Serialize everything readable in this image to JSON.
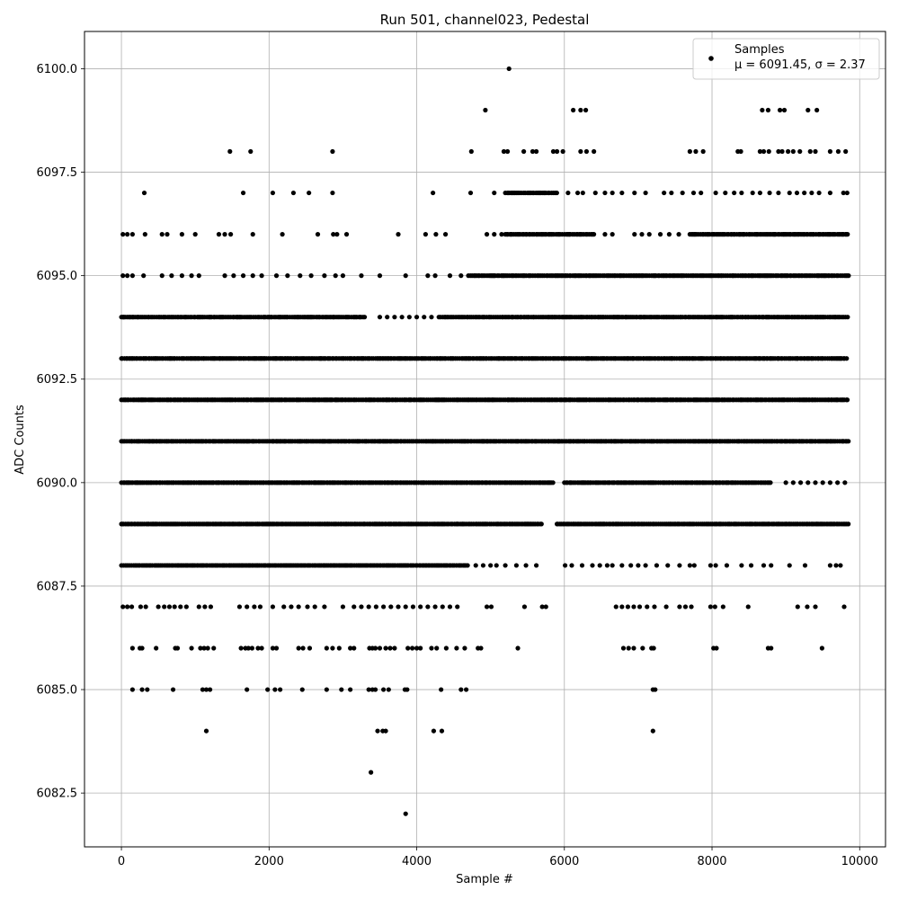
{
  "chart_data": {
    "type": "scatter",
    "title": "Run 501, channel023, Pedestal",
    "xlabel": "Sample #",
    "ylabel": "ADC Counts",
    "xlim": [
      -500,
      10350
    ],
    "ylim": [
      6081.2,
      6100.9
    ],
    "xticks": [
      0,
      2000,
      4000,
      6000,
      8000,
      10000
    ],
    "yticks": [
      6082.5,
      6085.0,
      6087.5,
      6090.0,
      6092.5,
      6095.0,
      6097.5,
      6100.0
    ],
    "xtick_labels": [
      "0",
      "2000",
      "4000",
      "6000",
      "8000",
      "10000"
    ],
    "ytick_labels": [
      "6082.5",
      "6085.0",
      "6087.5",
      "6090.0",
      "6092.5",
      "6095.0",
      "6097.5",
      "6100.0"
    ],
    "grid": true,
    "marker_color": "#000000",
    "legend": {
      "position": "top-right",
      "series_name": "Samples",
      "stats_text": "μ = 6091.45, σ = 2.37"
    },
    "n_samples": 9856,
    "levels": [
      6082,
      6083,
      6084,
      6085,
      6086,
      6087,
      6088,
      6089,
      6090,
      6091,
      6092,
      6093,
      6094,
      6095,
      6096,
      6097,
      6098,
      6099,
      6100
    ],
    "dense_levels": [
      {
        "y": 6088,
        "x_range": [
          0,
          4700
        ]
      },
      {
        "y": 6089,
        "x_range": [
          0,
          5700
        ]
      },
      {
        "y": 6089,
        "x_range": [
          5900,
          9850
        ]
      },
      {
        "y": 6090,
        "x_range": [
          0,
          5850
        ]
      },
      {
        "y": 6090,
        "x_range": [
          6000,
          8800
        ]
      },
      {
        "y": 6091,
        "x_range": [
          0,
          9850
        ]
      },
      {
        "y": 6092,
        "x_range": [
          0,
          9850
        ]
      },
      {
        "y": 6093,
        "x_range": [
          0,
          9850
        ]
      },
      {
        "y": 6094,
        "x_range": [
          0,
          3300
        ]
      },
      {
        "y": 6094,
        "x_range": [
          4300,
          9850
        ]
      },
      {
        "y": 6095,
        "x_range": [
          4700,
          9850
        ]
      },
      {
        "y": 6096,
        "x_range": [
          5200,
          6400
        ]
      },
      {
        "y": 6096,
        "x_range": [
          7700,
          9850
        ]
      },
      {
        "y": 6097,
        "x_range": [
          5200,
          5900
        ]
      }
    ],
    "points": [
      [
        3850,
        6082
      ],
      [
        3380,
        6083
      ],
      [
        1150,
        6084
      ],
      [
        3470,
        6084
      ],
      [
        3540,
        6084
      ],
      [
        3580,
        6084
      ],
      [
        4230,
        6084
      ],
      [
        4340,
        6084
      ],
      [
        7200,
        6084
      ],
      [
        150,
        6085
      ],
      [
        280,
        6085
      ],
      [
        350,
        6085
      ],
      [
        700,
        6085
      ],
      [
        1100,
        6085
      ],
      [
        1150,
        6085
      ],
      [
        1200,
        6085
      ],
      [
        1700,
        6085
      ],
      [
        1980,
        6085
      ],
      [
        2080,
        6085
      ],
      [
        2150,
        6085
      ],
      [
        2450,
        6085
      ],
      [
        2780,
        6085
      ],
      [
        2980,
        6085
      ],
      [
        3100,
        6085
      ],
      [
        3350,
        6085
      ],
      [
        3400,
        6085
      ],
      [
        3440,
        6085
      ],
      [
        3550,
        6085
      ],
      [
        3620,
        6085
      ],
      [
        3840,
        6085
      ],
      [
        3870,
        6085
      ],
      [
        4330,
        6085
      ],
      [
        4600,
        6085
      ],
      [
        4670,
        6085
      ],
      [
        7200,
        6085
      ],
      [
        7230,
        6085
      ],
      [
        150,
        6086
      ],
      [
        250,
        6086
      ],
      [
        280,
        6086
      ],
      [
        470,
        6086
      ],
      [
        730,
        6086
      ],
      [
        760,
        6086
      ],
      [
        950,
        6086
      ],
      [
        1070,
        6086
      ],
      [
        1120,
        6086
      ],
      [
        1170,
        6086
      ],
      [
        1250,
        6086
      ],
      [
        1620,
        6086
      ],
      [
        1680,
        6086
      ],
      [
        1720,
        6086
      ],
      [
        1770,
        6086
      ],
      [
        1850,
        6086
      ],
      [
        1900,
        6086
      ],
      [
        2050,
        6086
      ],
      [
        2100,
        6086
      ],
      [
        2400,
        6086
      ],
      [
        2460,
        6086
      ],
      [
        2550,
        6086
      ],
      [
        2780,
        6086
      ],
      [
        2860,
        6086
      ],
      [
        2950,
        6086
      ],
      [
        3100,
        6086
      ],
      [
        3150,
        6086
      ],
      [
        3360,
        6086
      ],
      [
        3400,
        6086
      ],
      [
        3440,
        6086
      ],
      [
        3500,
        6086
      ],
      [
        3580,
        6086
      ],
      [
        3640,
        6086
      ],
      [
        3700,
        6086
      ],
      [
        3880,
        6086
      ],
      [
        3940,
        6086
      ],
      [
        4000,
        6086
      ],
      [
        4050,
        6086
      ],
      [
        4200,
        6086
      ],
      [
        4270,
        6086
      ],
      [
        4400,
        6086
      ],
      [
        4540,
        6086
      ],
      [
        4650,
        6086
      ],
      [
        4830,
        6086
      ],
      [
        4870,
        6086
      ],
      [
        5370,
        6086
      ],
      [
        6800,
        6086
      ],
      [
        6870,
        6086
      ],
      [
        6940,
        6086
      ],
      [
        7060,
        6086
      ],
      [
        7180,
        6086
      ],
      [
        7210,
        6086
      ],
      [
        8020,
        6086
      ],
      [
        8060,
        6086
      ],
      [
        8760,
        6086
      ],
      [
        8800,
        6086
      ],
      [
        9490,
        6086
      ],
      [
        20,
        6087
      ],
      [
        80,
        6087
      ],
      [
        140,
        6087
      ],
      [
        260,
        6087
      ],
      [
        330,
        6087
      ],
      [
        500,
        6087
      ],
      [
        580,
        6087
      ],
      [
        650,
        6087
      ],
      [
        720,
        6087
      ],
      [
        800,
        6087
      ],
      [
        880,
        6087
      ],
      [
        1050,
        6087
      ],
      [
        1130,
        6087
      ],
      [
        1210,
        6087
      ],
      [
        1600,
        6087
      ],
      [
        1700,
        6087
      ],
      [
        1800,
        6087
      ],
      [
        1880,
        6087
      ],
      [
        2050,
        6087
      ],
      [
        2200,
        6087
      ],
      [
        2300,
        6087
      ],
      [
        2400,
        6087
      ],
      [
        2520,
        6087
      ],
      [
        2620,
        6087
      ],
      [
        2750,
        6087
      ],
      [
        3000,
        6087
      ],
      [
        3150,
        6087
      ],
      [
        3250,
        6087
      ],
      [
        3350,
        6087
      ],
      [
        3450,
        6087
      ],
      [
        3550,
        6087
      ],
      [
        3650,
        6087
      ],
      [
        3750,
        6087
      ],
      [
        3850,
        6087
      ],
      [
        3950,
        6087
      ],
      [
        4050,
        6087
      ],
      [
        4150,
        6087
      ],
      [
        4250,
        6087
      ],
      [
        4350,
        6087
      ],
      [
        4450,
        6087
      ],
      [
        4550,
        6087
      ],
      [
        4950,
        6087
      ],
      [
        5010,
        6087
      ],
      [
        5460,
        6087
      ],
      [
        5700,
        6087
      ],
      [
        5750,
        6087
      ],
      [
        6700,
        6087
      ],
      [
        6780,
        6087
      ],
      [
        6860,
        6087
      ],
      [
        6940,
        6087
      ],
      [
        7020,
        6087
      ],
      [
        7120,
        6087
      ],
      [
        7220,
        6087
      ],
      [
        7380,
        6087
      ],
      [
        7560,
        6087
      ],
      [
        7640,
        6087
      ],
      [
        7720,
        6087
      ],
      [
        7980,
        6087
      ],
      [
        8040,
        6087
      ],
      [
        8150,
        6087
      ],
      [
        8490,
        6087
      ],
      [
        9160,
        6087
      ],
      [
        9290,
        6087
      ],
      [
        9400,
        6087
      ],
      [
        9790,
        6087
      ],
      [
        4800,
        6088
      ],
      [
        4900,
        6088
      ],
      [
        5000,
        6088
      ],
      [
        5080,
        6088
      ],
      [
        5200,
        6088
      ],
      [
        5350,
        6088
      ],
      [
        5480,
        6088
      ],
      [
        5620,
        6088
      ],
      [
        6010,
        6088
      ],
      [
        6100,
        6088
      ],
      [
        6240,
        6088
      ],
      [
        6380,
        6088
      ],
      [
        6480,
        6088
      ],
      [
        6580,
        6088
      ],
      [
        6650,
        6088
      ],
      [
        6780,
        6088
      ],
      [
        6900,
        6088
      ],
      [
        7000,
        6088
      ],
      [
        7100,
        6088
      ],
      [
        7250,
        6088
      ],
      [
        7400,
        6088
      ],
      [
        7560,
        6088
      ],
      [
        7700,
        6088
      ],
      [
        7760,
        6088
      ],
      [
        7980,
        6088
      ],
      [
        8050,
        6088
      ],
      [
        8200,
        6088
      ],
      [
        8400,
        6088
      ],
      [
        8530,
        6088
      ],
      [
        8700,
        6088
      ],
      [
        8800,
        6088
      ],
      [
        9050,
        6088
      ],
      [
        9260,
        6088
      ],
      [
        9600,
        6088
      ],
      [
        9680,
        6088
      ],
      [
        9740,
        6088
      ],
      [
        9000,
        6090
      ],
      [
        9100,
        6090
      ],
      [
        9200,
        6090
      ],
      [
        9300,
        6090
      ],
      [
        9400,
        6090
      ],
      [
        9500,
        6090
      ],
      [
        9600,
        6090
      ],
      [
        9700,
        6090
      ],
      [
        9800,
        6090
      ],
      [
        30,
        6094
      ],
      [
        120,
        6094
      ],
      [
        220,
        6094
      ],
      [
        3500,
        6094
      ],
      [
        3600,
        6094
      ],
      [
        3700,
        6094
      ],
      [
        3800,
        6094
      ],
      [
        3900,
        6094
      ],
      [
        4000,
        6094
      ],
      [
        4100,
        6094
      ],
      [
        4200,
        6094
      ],
      [
        20,
        6095
      ],
      [
        80,
        6095
      ],
      [
        150,
        6095
      ],
      [
        300,
        6095
      ],
      [
        550,
        6095
      ],
      [
        680,
        6095
      ],
      [
        820,
        6095
      ],
      [
        950,
        6095
      ],
      [
        1050,
        6095
      ],
      [
        1400,
        6095
      ],
      [
        1520,
        6095
      ],
      [
        1650,
        6095
      ],
      [
        1780,
        6095
      ],
      [
        1900,
        6095
      ],
      [
        2100,
        6095
      ],
      [
        2250,
        6095
      ],
      [
        2420,
        6095
      ],
      [
        2570,
        6095
      ],
      [
        2750,
        6095
      ],
      [
        2900,
        6095
      ],
      [
        3000,
        6095
      ],
      [
        3250,
        6095
      ],
      [
        3500,
        6095
      ],
      [
        3850,
        6095
      ],
      [
        4150,
        6095
      ],
      [
        4250,
        6095
      ],
      [
        4450,
        6095
      ],
      [
        4600,
        6095
      ],
      [
        20,
        6096
      ],
      [
        80,
        6096
      ],
      [
        150,
        6096
      ],
      [
        320,
        6096
      ],
      [
        550,
        6096
      ],
      [
        620,
        6096
      ],
      [
        820,
        6096
      ],
      [
        1000,
        6096
      ],
      [
        1320,
        6096
      ],
      [
        1400,
        6096
      ],
      [
        1480,
        6096
      ],
      [
        1780,
        6096
      ],
      [
        2180,
        6096
      ],
      [
        2660,
        6096
      ],
      [
        2870,
        6096
      ],
      [
        2920,
        6096
      ],
      [
        3050,
        6096
      ],
      [
        3750,
        6096
      ],
      [
        4120,
        6096
      ],
      [
        4260,
        6096
      ],
      [
        4390,
        6096
      ],
      [
        4950,
        6096
      ],
      [
        5050,
        6096
      ],
      [
        5150,
        6096
      ],
      [
        6550,
        6096
      ],
      [
        6650,
        6096
      ],
      [
        6950,
        6096
      ],
      [
        7050,
        6096
      ],
      [
        7150,
        6096
      ],
      [
        7300,
        6096
      ],
      [
        7420,
        6096
      ],
      [
        7550,
        6096
      ],
      [
        310,
        6097
      ],
      [
        1650,
        6097
      ],
      [
        2050,
        6097
      ],
      [
        2330,
        6097
      ],
      [
        2540,
        6097
      ],
      [
        2860,
        6097
      ],
      [
        4220,
        6097
      ],
      [
        4730,
        6097
      ],
      [
        5050,
        6097
      ],
      [
        6050,
        6097
      ],
      [
        6180,
        6097
      ],
      [
        6250,
        6097
      ],
      [
        6420,
        6097
      ],
      [
        6550,
        6097
      ],
      [
        6650,
        6097
      ],
      [
        6780,
        6097
      ],
      [
        6950,
        6097
      ],
      [
        7100,
        6097
      ],
      [
        7350,
        6097
      ],
      [
        7450,
        6097
      ],
      [
        7600,
        6097
      ],
      [
        7750,
        6097
      ],
      [
        7850,
        6097
      ],
      [
        8050,
        6097
      ],
      [
        8180,
        6097
      ],
      [
        8300,
        6097
      ],
      [
        8400,
        6097
      ],
      [
        8550,
        6097
      ],
      [
        8650,
        6097
      ],
      [
        8780,
        6097
      ],
      [
        8900,
        6097
      ],
      [
        9050,
        6097
      ],
      [
        9150,
        6097
      ],
      [
        9250,
        6097
      ],
      [
        9350,
        6097
      ],
      [
        9450,
        6097
      ],
      [
        9600,
        6097
      ],
      [
        9780,
        6097
      ],
      [
        9830,
        6097
      ],
      [
        1470,
        6098
      ],
      [
        1750,
        6098
      ],
      [
        2860,
        6098
      ],
      [
        4740,
        6098
      ],
      [
        5180,
        6098
      ],
      [
        5230,
        6098
      ],
      [
        5450,
        6098
      ],
      [
        5570,
        6098
      ],
      [
        5620,
        6098
      ],
      [
        5850,
        6098
      ],
      [
        5900,
        6098
      ],
      [
        5980,
        6098
      ],
      [
        6220,
        6098
      ],
      [
        6300,
        6098
      ],
      [
        6400,
        6098
      ],
      [
        7700,
        6098
      ],
      [
        7780,
        6098
      ],
      [
        7880,
        6098
      ],
      [
        8350,
        6098
      ],
      [
        8390,
        6098
      ],
      [
        8650,
        6098
      ],
      [
        8700,
        6098
      ],
      [
        8770,
        6098
      ],
      [
        8900,
        6098
      ],
      [
        8950,
        6098
      ],
      [
        9030,
        6098
      ],
      [
        9100,
        6098
      ],
      [
        9190,
        6098
      ],
      [
        9330,
        6098
      ],
      [
        9400,
        6098
      ],
      [
        9600,
        6098
      ],
      [
        9710,
        6098
      ],
      [
        9810,
        6098
      ],
      [
        4930,
        6099
      ],
      [
        6120,
        6099
      ],
      [
        6220,
        6099
      ],
      [
        6290,
        6099
      ],
      [
        8680,
        6099
      ],
      [
        8760,
        6099
      ],
      [
        8920,
        6099
      ],
      [
        8980,
        6099
      ],
      [
        9300,
        6099
      ],
      [
        9420,
        6099
      ],
      [
        5250,
        6100
      ]
    ]
  }
}
